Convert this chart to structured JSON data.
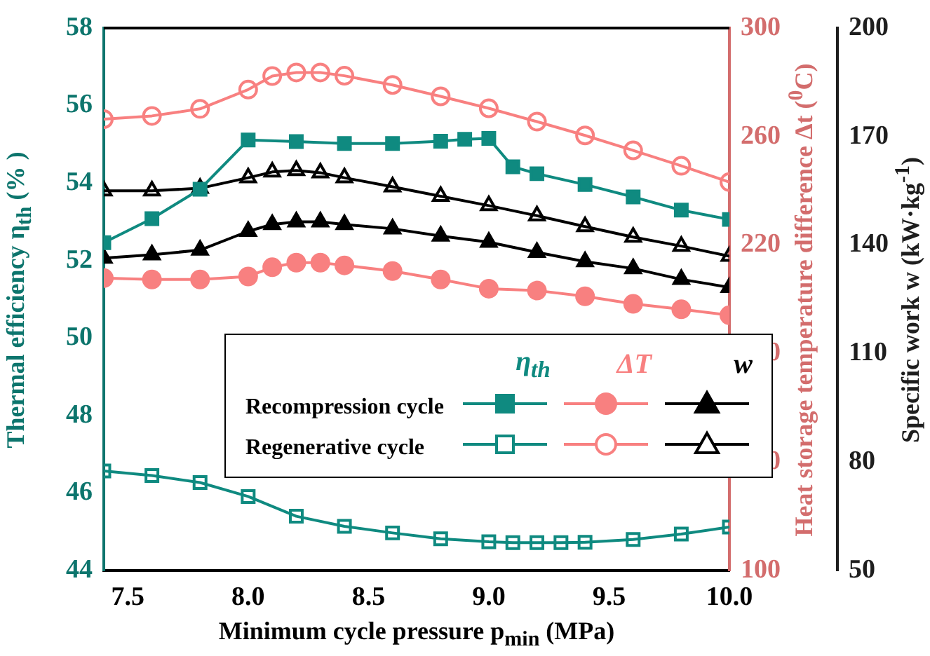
{
  "chart_data": {
    "type": "line",
    "xlabel": "Minimum cycle pressure p$_{min}$ (MPa)",
    "ylabel": "Thermal efficiency η$_{th}$ (% )",
    "y2label": "Heat storage temperature difference Δt ($^{0}$C)",
    "y3label": "Specific work w (kW·kg$^{-1}$)",
    "annotations": [
      "η$_{th}$",
      "ΔT",
      "w"
    ],
    "xlim": [
      7.4,
      10.0
    ],
    "xticks": [
      7.5,
      {
        "value": 8,
        "label": "8.0"
      },
      8.5,
      {
        "value": 9,
        "label": "9.0"
      },
      9.5,
      {
        "value": 10,
        "label": "10.0"
      }
    ],
    "ylim": [
      44,
      58
    ],
    "yticks": [
      44,
      46,
      48,
      50,
      52,
      54,
      56,
      58
    ],
    "y2lim": [
      100,
      300
    ],
    "y2ticks": [
      100,
      140,
      180,
      220,
      260,
      300
    ],
    "y3lim": [
      50,
      200
    ],
    "y3ticks": [
      50,
      80,
      110,
      140,
      170,
      200
    ],
    "legend": "bottom",
    "grid": false,
    "series": [
      {
        "name": "Recompression cycle",
        "color": "#0f8a80",
        "marker": "square",
        "x": [
          7.4,
          7.6,
          7.8,
          8.0,
          8.2,
          8.4,
          8.6,
          8.8,
          8.9,
          9.0,
          9.1,
          9.2,
          9.4,
          9.6,
          9.8,
          10.0
        ],
        "values": [
          52.46,
          53.08,
          53.84,
          55.11,
          55.07,
          55.02,
          55.02,
          55.08,
          55.13,
          55.15,
          54.42,
          54.24,
          53.96,
          53.64,
          53.3,
          53.06
        ]
      },
      {
        "color": "#f88080",
        "marker": "circle",
        "axis": "y2",
        "x": [
          7.4,
          7.6,
          7.8,
          8.0,
          8.1,
          8.2,
          8.3,
          8.4,
          8.6,
          8.8,
          9.0,
          9.2,
          9.4,
          9.6,
          9.8,
          10.0
        ],
        "values": [
          207.8,
          207.3,
          207.3,
          208.4,
          211.8,
          213.5,
          213.5,
          212.5,
          210.4,
          207.3,
          203.9,
          203.2,
          201.1,
          198.3,
          196.3,
          194.1
        ]
      },
      {
        "color": "#000000",
        "marker": "triangle",
        "axis": "y3",
        "x": [
          7.4,
          7.6,
          7.8,
          8.0,
          8.1,
          8.2,
          8.3,
          8.4,
          8.6,
          8.8,
          9.0,
          9.2,
          9.4,
          9.6,
          9.8,
          10.0
        ],
        "values": [
          136.4,
          137.3,
          138.6,
          143.8,
          145.7,
          146.4,
          146.4,
          145.7,
          144.5,
          142.5,
          140.8,
          138.0,
          135.4,
          133.5,
          130.5,
          128.3
        ]
      },
      {
        "name": "Regenerative cycle",
        "color": "#0f8a80",
        "marker": "square",
        "x": [
          7.4,
          7.6,
          7.8,
          8.0,
          8.2,
          8.4,
          8.6,
          8.8,
          9.0,
          9.1,
          9.2,
          9.3,
          9.4,
          9.6,
          9.8,
          10.0
        ],
        "values": [
          46.57,
          46.45,
          46.27,
          45.91,
          45.4,
          45.14,
          44.97,
          44.82,
          44.74,
          44.72,
          44.72,
          44.72,
          44.73,
          44.8,
          44.94,
          45.12
        ]
      },
      {
        "color": "#f88080",
        "marker": "circle",
        "axis": "y2",
        "x": [
          7.4,
          7.6,
          7.8,
          8.0,
          8.1,
          8.2,
          8.3,
          8.4,
          8.6,
          8.8,
          9.0,
          9.2,
          9.4,
          9.6,
          9.8,
          10.0
        ],
        "values": [
          266.4,
          267.6,
          270.2,
          277.3,
          282.3,
          283.6,
          283.6,
          282.4,
          279.0,
          274.8,
          270.4,
          265.5,
          260.4,
          254.9,
          249.2,
          243.2
        ]
      },
      {
        "color": "#000000",
        "marker": "triangle",
        "axis": "y3",
        "x": [
          7.4,
          7.6,
          7.8,
          8.0,
          8.1,
          8.2,
          8.3,
          8.4,
          8.6,
          8.8,
          9.0,
          9.2,
          9.4,
          9.6,
          9.8,
          10.0
        ],
        "values": [
          155.0,
          155.0,
          155.7,
          158.6,
          160.2,
          160.6,
          160.0,
          158.6,
          156.1,
          153.5,
          150.9,
          148.1,
          145.1,
          142.2,
          139.7,
          136.9
        ]
      }
    ]
  }
}
